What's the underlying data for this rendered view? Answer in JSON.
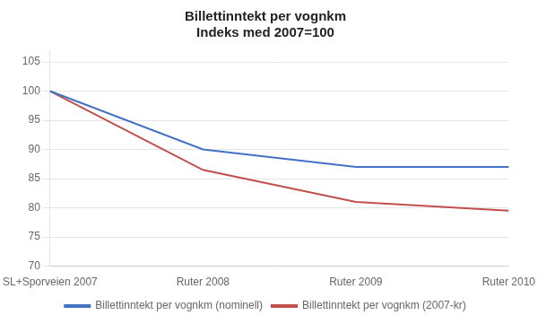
{
  "chart_data": {
    "type": "line",
    "title": "Billettinntekt per vognkm",
    "subtitle": "Indeks med 2007=100",
    "categories": [
      "SL+Sporveien 2007",
      "Ruter 2008",
      "Ruter 2009",
      "Ruter 2010"
    ],
    "series": [
      {
        "name": "Billettinntekt per vognkm (nominell)",
        "color": "#4472C4",
        "values": [
          100,
          90,
          87,
          87
        ]
      },
      {
        "name": "Billettinntekt per vognkm (2007-kr)",
        "color": "#C0504D",
        "values": [
          100,
          86.5,
          81,
          79.5
        ]
      }
    ],
    "ylim": [
      70,
      107
    ],
    "yticks": [
      70,
      75,
      80,
      85,
      90,
      95,
      100,
      105
    ],
    "grid": true,
    "legend": "bottom",
    "marker": "none"
  }
}
